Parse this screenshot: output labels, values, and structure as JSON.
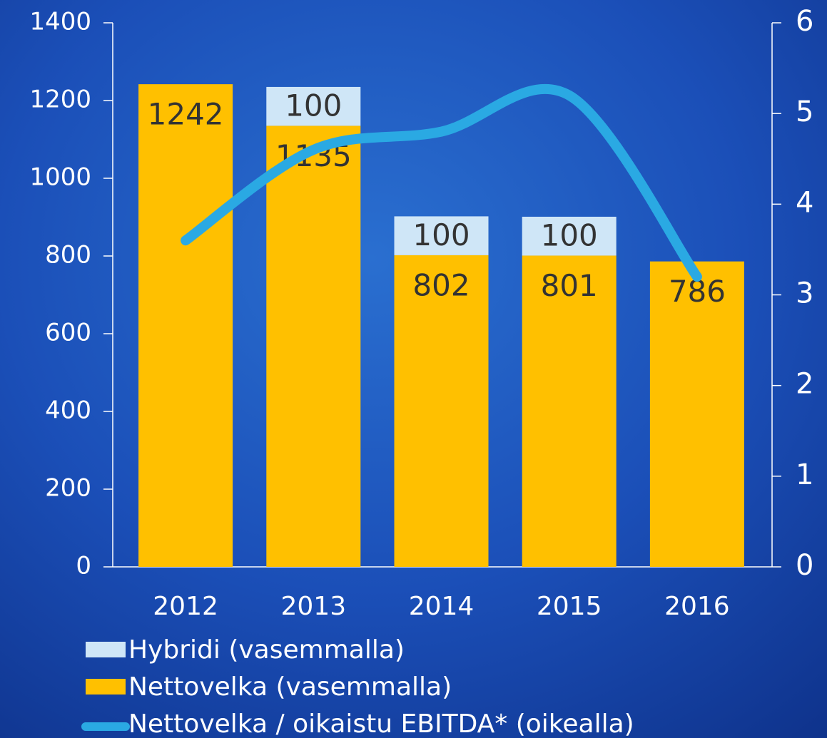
{
  "chart_data": {
    "type": "bar",
    "stacked": true,
    "categories": [
      "2012",
      "2013",
      "2014",
      "2015",
      "2016"
    ],
    "series": [
      {
        "name": "Hybridi (vasemmalla)",
        "color": "#cfe6f7",
        "values": [
          null,
          100,
          100,
          100,
          null
        ]
      },
      {
        "name": "Nettovelka (vasemmalla)",
        "color": "#ffc000",
        "values": [
          1242,
          1135,
          802,
          801,
          786
        ]
      },
      {
        "name": "Nettovelka / oikaistu EBITDA* (oikealla)",
        "type": "line",
        "axis": "y2",
        "color": "#2aa9e3",
        "values": [
          3.6,
          4.6,
          4.8,
          5.2,
          3.2
        ]
      }
    ],
    "ylim": [
      0,
      1400
    ],
    "yticks": [
      0,
      200,
      400,
      600,
      800,
      1000,
      1200,
      1400
    ],
    "y2lim": [
      0,
      6
    ],
    "y2ticks": [
      0,
      1,
      2,
      3,
      4,
      5,
      6
    ]
  }
}
